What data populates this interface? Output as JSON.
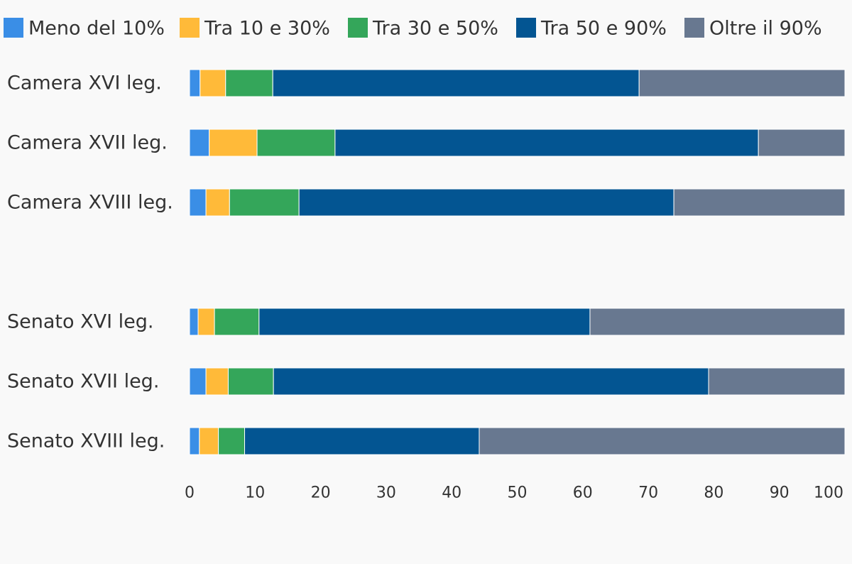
{
  "chart_data": {
    "type": "bar",
    "orientation": "horizontal",
    "stacked": true,
    "categories": [
      "Camera XVI leg.",
      "Camera XVII leg.",
      "Camera XVIII leg.",
      "",
      "Senato XVI leg.",
      "Senato XVII leg.",
      "Senato XVIII leg."
    ],
    "series": [
      {
        "name": "Meno del 10%",
        "color": "#3a8ee6",
        "values": [
          1.6,
          3.0,
          2.5,
          null,
          1.3,
          2.5,
          1.5
        ]
      },
      {
        "name": "Tra 10 e 30%",
        "color": "#ffba39",
        "values": [
          3.9,
          7.3,
          3.6,
          null,
          2.5,
          3.4,
          2.9
        ]
      },
      {
        "name": "Tra 30 e 50%",
        "color": "#34a65a",
        "values": [
          7.2,
          11.9,
          10.6,
          null,
          6.8,
          6.9,
          4.0
        ]
      },
      {
        "name": "Tra 50 e 90%",
        "color": "#035592",
        "values": [
          55.9,
          64.6,
          57.2,
          null,
          50.5,
          66.4,
          35.8
        ]
      },
      {
        "name": "Oltre il 90%",
        "color": "#687890",
        "values": [
          31.4,
          13.2,
          26.1,
          null,
          38.9,
          20.8,
          55.8
        ]
      }
    ],
    "xticks": [
      "0",
      "10",
      "20",
      "30",
      "40",
      "50",
      "60",
      "70",
      "80",
      "90",
      "100"
    ],
    "xlim": [
      0,
      100
    ],
    "legend": "top",
    "grid": false,
    "title": "",
    "xlabel": "",
    "ylabel": ""
  }
}
